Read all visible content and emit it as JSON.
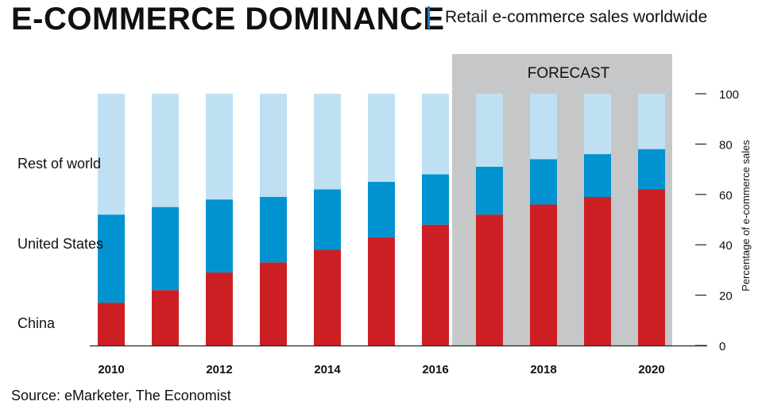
{
  "header": {
    "title": "E-COMMERCE DOMINANCE",
    "subtitle": "Retail e-commerce sales worldwide"
  },
  "footer": {
    "source": "Source: eMarketer, The Economist"
  },
  "chart_data": {
    "type": "bar",
    "stacked": true,
    "title": "E-COMMERCE DOMINANCE",
    "subtitle": "Retail e-commerce sales worldwide",
    "ylabel": "Percentage of e-commerce sales",
    "ylim": [
      0,
      100
    ],
    "yticks": [
      "0",
      "20",
      "40",
      "60",
      "80",
      "100"
    ],
    "y_axis_side": "right",
    "x": [
      "2010",
      "2011",
      "2012",
      "2013",
      "2014",
      "2015",
      "2016",
      "2017",
      "2018",
      "2019",
      "2020"
    ],
    "xtick_labels": [
      "2010",
      "",
      "2012",
      "",
      "2014",
      "",
      "2016",
      "",
      "2018",
      "",
      "2020"
    ],
    "forecast_label": "FORECAST",
    "forecast_start": "2017",
    "series": [
      {
        "name": "China",
        "color": "#cc1f24",
        "values": [
          17,
          22,
          29,
          33,
          38,
          43,
          48,
          52,
          56,
          59,
          62
        ]
      },
      {
        "name": "United States",
        "color": "#0093d0",
        "values": [
          35,
          33,
          29,
          26,
          24,
          22,
          20,
          19,
          18,
          17,
          16
        ]
      },
      {
        "name": "Rest of world",
        "color": "#bfe0f3",
        "values": [
          48,
          45,
          42,
          41,
          38,
          35,
          32,
          29,
          26,
          24,
          22
        ]
      }
    ],
    "legend_placement": "left, labels beside bar segments",
    "grid": false,
    "forecast_color": "#c6c7c9"
  }
}
